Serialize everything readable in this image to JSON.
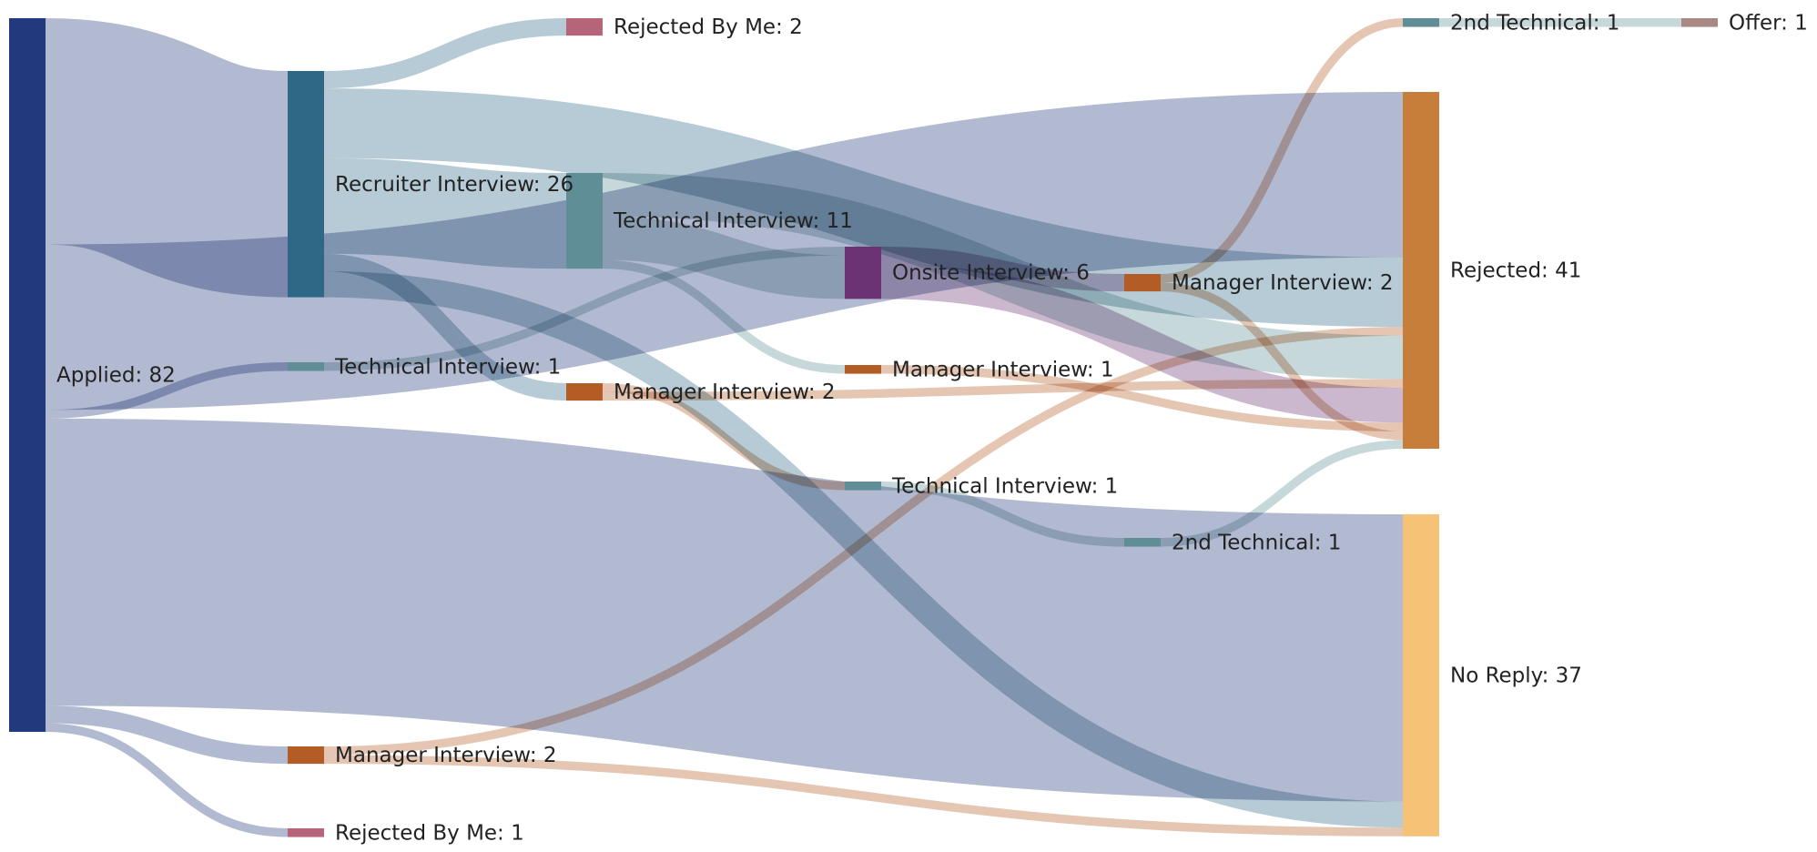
{
  "chart_data": {
    "type": "sankey",
    "title": "",
    "colors": {
      "Applied": "#22397e",
      "Recruiter Interview": "#2d6987",
      "Technical Interview": "#5f8e96",
      "Manager Interview": "#b45c25",
      "Rejected By Me": "#b66478",
      "Onsite Interview": "#6b3374",
      "2nd Technical": "#5f8e96",
      "Offer": "#a98884",
      "Rejected": "#c77e3a",
      "No Reply": "#f5c276"
    },
    "nodes": [
      {
        "id": "applied",
        "name": "Applied",
        "value": 82,
        "label": "Applied: 82"
      },
      {
        "id": "recruiter",
        "name": "Recruiter Interview",
        "value": 26,
        "label": "Recruiter Interview: 26"
      },
      {
        "id": "tech_a",
        "name": "Technical Interview",
        "value": 1,
        "label": "Technical Interview: 1"
      },
      {
        "id": "mgr_a",
        "name": "Manager Interview",
        "value": 2,
        "label": "Manager Interview: 2"
      },
      {
        "id": "rbm_a",
        "name": "Rejected By Me",
        "value": 1,
        "label": "Rejected By Me: 1"
      },
      {
        "id": "rbm_r",
        "name": "Rejected By Me",
        "value": 2,
        "label": "Rejected By Me: 2"
      },
      {
        "id": "tech_r",
        "name": "Technical Interview",
        "value": 11,
        "label": "Technical Interview: 11"
      },
      {
        "id": "mgr_r",
        "name": "Manager Interview",
        "value": 2,
        "label": "Manager Interview: 2"
      },
      {
        "id": "onsite",
        "name": "Onsite Interview",
        "value": 6,
        "label": "Onsite Interview: 6"
      },
      {
        "id": "mgr_t",
        "name": "Manager Interview",
        "value": 1,
        "label": "Manager Interview: 1"
      },
      {
        "id": "tech_m",
        "name": "Technical Interview",
        "value": 1,
        "label": "Technical Interview: 1"
      },
      {
        "id": "mgr_o",
        "name": "Manager Interview",
        "value": 2,
        "label": "Manager Interview: 2"
      },
      {
        "id": "tech2_t",
        "name": "2nd Technical",
        "value": 1,
        "label": "2nd Technical: 1"
      },
      {
        "id": "tech2_o",
        "name": "2nd Technical",
        "value": 1,
        "label": "2nd Technical: 1"
      },
      {
        "id": "rejected",
        "name": "Rejected",
        "value": 41,
        "label": "Rejected: 41"
      },
      {
        "id": "noreply",
        "name": "No Reply",
        "value": 37,
        "label": "No Reply: 37"
      },
      {
        "id": "offer",
        "name": "Offer",
        "value": 1,
        "label": "Offer: 1"
      }
    ],
    "links": [
      {
        "source": "applied",
        "target": "recruiter",
        "value": 26
      },
      {
        "source": "applied",
        "target": "rejected",
        "value": 19
      },
      {
        "source": "applied",
        "target": "tech_a",
        "value": 1
      },
      {
        "source": "applied",
        "target": "noreply",
        "value": 33
      },
      {
        "source": "applied",
        "target": "mgr_a",
        "value": 2
      },
      {
        "source": "applied",
        "target": "rbm_a",
        "value": 1
      },
      {
        "source": "recruiter",
        "target": "rbm_r",
        "value": 2
      },
      {
        "source": "recruiter",
        "target": "rejected",
        "value": 8
      },
      {
        "source": "recruiter",
        "target": "tech_r",
        "value": 11
      },
      {
        "source": "recruiter",
        "target": "mgr_r",
        "value": 2
      },
      {
        "source": "recruiter",
        "target": "noreply",
        "value": 3
      },
      {
        "source": "tech_a",
        "target": "onsite",
        "value": 1
      },
      {
        "source": "mgr_a",
        "target": "rejected",
        "value": 1
      },
      {
        "source": "mgr_a",
        "target": "noreply",
        "value": 1
      },
      {
        "source": "tech_r",
        "target": "rejected",
        "value": 5
      },
      {
        "source": "tech_r",
        "target": "onsite",
        "value": 5
      },
      {
        "source": "tech_r",
        "target": "mgr_t",
        "value": 1
      },
      {
        "source": "mgr_r",
        "target": "tech_m",
        "value": 1
      },
      {
        "source": "mgr_r",
        "target": "rejected",
        "value": 1
      },
      {
        "source": "onsite",
        "target": "mgr_o",
        "value": 2
      },
      {
        "source": "onsite",
        "target": "rejected",
        "value": 4
      },
      {
        "source": "mgr_t",
        "target": "rejected",
        "value": 1
      },
      {
        "source": "tech_m",
        "target": "tech2_t",
        "value": 1
      },
      {
        "source": "mgr_o",
        "target": "tech2_o",
        "value": 1
      },
      {
        "source": "mgr_o",
        "target": "rejected",
        "value": 1
      },
      {
        "source": "tech2_t",
        "target": "rejected",
        "value": 1
      },
      {
        "source": "tech2_o",
        "target": "offer",
        "value": 1
      }
    ]
  }
}
